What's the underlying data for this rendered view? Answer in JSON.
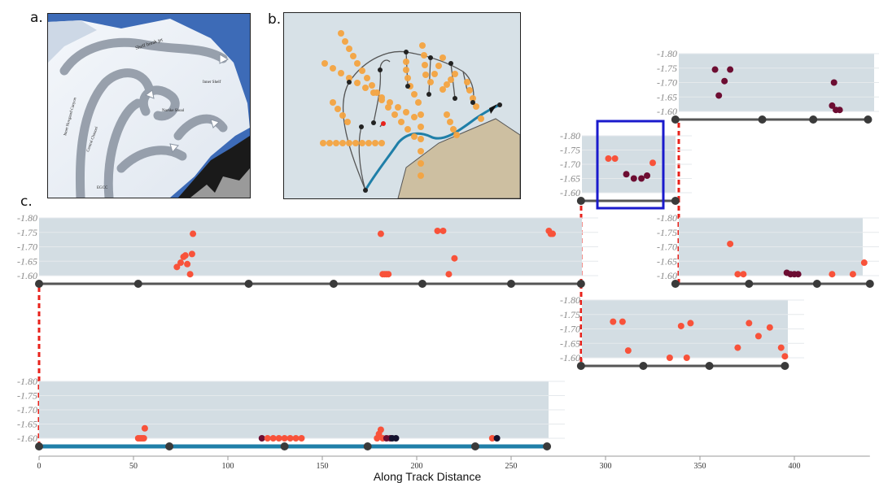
{
  "labels": {
    "a": "a.",
    "b": "b.",
    "c": "c."
  },
  "panel_a": {
    "map_labels": [
      "Shelf break jet",
      "Inner Hovgaard Canyon",
      "Central Channel",
      "Inner Shelf",
      "Norske Shoal",
      "EGCC"
    ]
  },
  "colors": {
    "panel_bg": "#d3dde3",
    "track": "#555555",
    "track_main": "#1f7fa8",
    "node": "#3a3a3a",
    "connector": "#e8221b",
    "highlight_box": "#1a1acc",
    "point_light": "#f8523a",
    "point_dark": "#6d0d32",
    "point_darkest": "#14122e",
    "tick_text": "#888888"
  },
  "chart_data": [
    {
      "type": "scatter",
      "id": "main-track",
      "xlabel": "Along Track Distance",
      "xticks": [
        0,
        50,
        100,
        150,
        200,
        250,
        300,
        350,
        400
      ],
      "xlim": [
        0,
        440
      ],
      "ylim": [
        -1.8,
        -1.6
      ],
      "yticks": [
        "-1.80",
        "-1.75",
        "-1.70",
        "-1.65",
        "-1.60"
      ],
      "track_nodes": [
        0,
        69,
        130,
        174,
        231,
        269
      ],
      "points": [
        {
          "x": 52.5,
          "y": -1.6,
          "c": "light"
        },
        {
          "x": 53.5,
          "y": -1.6,
          "c": "light"
        },
        {
          "x": 54.5,
          "y": -1.6,
          "c": "light"
        },
        {
          "x": 55.5,
          "y": -1.6,
          "c": "light"
        },
        {
          "x": 56,
          "y": -1.635,
          "c": "light"
        },
        {
          "x": 118,
          "y": -1.6,
          "c": "dark"
        },
        {
          "x": 121,
          "y": -1.6,
          "c": "light"
        },
        {
          "x": 124,
          "y": -1.6,
          "c": "light"
        },
        {
          "x": 127,
          "y": -1.6,
          "c": "light"
        },
        {
          "x": 130,
          "y": -1.6,
          "c": "light"
        },
        {
          "x": 133,
          "y": -1.6,
          "c": "light"
        },
        {
          "x": 136,
          "y": -1.6,
          "c": "light"
        },
        {
          "x": 139,
          "y": -1.6,
          "c": "light"
        },
        {
          "x": 179,
          "y": -1.6,
          "c": "light"
        },
        {
          "x": 180,
          "y": -1.615,
          "c": "light"
        },
        {
          "x": 181,
          "y": -1.63,
          "c": "light"
        },
        {
          "x": 182,
          "y": -1.6,
          "c": "light"
        },
        {
          "x": 184,
          "y": -1.6,
          "c": "dark"
        },
        {
          "x": 186,
          "y": -1.6,
          "c": "dark"
        },
        {
          "x": 187,
          "y": -1.6,
          "c": "darkest"
        },
        {
          "x": 189,
          "y": -1.6,
          "c": "darkest"
        },
        {
          "x": 240,
          "y": -1.6,
          "c": "light"
        },
        {
          "x": 242.5,
          "y": -1.6,
          "c": "darkest"
        }
      ]
    },
    {
      "type": "scatter",
      "id": "long-branch",
      "ylim": [
        -1.8,
        -1.6
      ],
      "yticks": [
        "-1.80",
        "-1.75",
        "-1.70",
        "-1.65",
        "-1.60"
      ],
      "track_nodes": [
        0,
        52.5,
        111,
        156,
        203,
        250,
        287
      ],
      "points": [
        {
          "x": 73,
          "y": -1.63,
          "c": "light"
        },
        {
          "x": 75,
          "y": -1.645,
          "c": "light"
        },
        {
          "x": 76.5,
          "y": -1.665,
          "c": "light"
        },
        {
          "x": 77.5,
          "y": -1.67,
          "c": "light"
        },
        {
          "x": 78.5,
          "y": -1.64,
          "c": "light"
        },
        {
          "x": 80,
          "y": -1.605,
          "c": "light"
        },
        {
          "x": 81,
          "y": -1.675,
          "c": "light"
        },
        {
          "x": 81.5,
          "y": -1.745,
          "c": "light"
        },
        {
          "x": 181,
          "y": -1.745,
          "c": "light"
        },
        {
          "x": 182,
          "y": -1.605,
          "c": "light"
        },
        {
          "x": 183,
          "y": -1.605,
          "c": "light"
        },
        {
          "x": 184,
          "y": -1.605,
          "c": "light"
        },
        {
          "x": 185,
          "y": -1.605,
          "c": "light"
        },
        {
          "x": 211,
          "y": -1.755,
          "c": "light"
        },
        {
          "x": 214,
          "y": -1.755,
          "c": "light"
        },
        {
          "x": 217,
          "y": -1.605,
          "c": "light"
        },
        {
          "x": 220,
          "y": -1.66,
          "c": "light"
        },
        {
          "x": 270,
          "y": -1.755,
          "c": "light"
        },
        {
          "x": 271,
          "y": -1.745,
          "c": "light"
        },
        {
          "x": 272,
          "y": -1.745,
          "c": "light"
        }
      ]
    },
    {
      "type": "scatter",
      "id": "lower-right",
      "ylim": [
        -1.8,
        -1.6
      ],
      "yticks": [
        "-1.80",
        "-1.75",
        "-1.70",
        "-1.65",
        "-1.60"
      ],
      "track_nodes": [
        287,
        320,
        355,
        395
      ],
      "points": [
        {
          "x": 304,
          "y": -1.725,
          "c": "light"
        },
        {
          "x": 309,
          "y": -1.725,
          "c": "light"
        },
        {
          "x": 312,
          "y": -1.625,
          "c": "light"
        },
        {
          "x": 334,
          "y": -1.6,
          "c": "light"
        },
        {
          "x": 340,
          "y": -1.71,
          "c": "light"
        },
        {
          "x": 343,
          "y": -1.6,
          "c": "light"
        },
        {
          "x": 345,
          "y": -1.72,
          "c": "light"
        },
        {
          "x": 370,
          "y": -1.635,
          "c": "light"
        },
        {
          "x": 376,
          "y": -1.72,
          "c": "light"
        },
        {
          "x": 381,
          "y": -1.675,
          "c": "light"
        },
        {
          "x": 387,
          "y": -1.705,
          "c": "light"
        },
        {
          "x": 393,
          "y": -1.635,
          "c": "light"
        },
        {
          "x": 395,
          "y": -1.605,
          "c": "light"
        }
      ]
    },
    {
      "type": "scatter",
      "id": "small-branch",
      "ylim": [
        -1.8,
        -1.6
      ],
      "yticks": [
        "-1.80",
        "-1.75",
        "-1.70",
        "-1.65",
        "-1.60"
      ],
      "track_nodes": [
        287,
        337
      ],
      "highlighted": true,
      "points": [
        {
          "x": 301.5,
          "y": -1.72,
          "c": "light"
        },
        {
          "x": 305,
          "y": -1.72,
          "c": "light"
        },
        {
          "x": 311,
          "y": -1.665,
          "c": "dark"
        },
        {
          "x": 315,
          "y": -1.65,
          "c": "dark"
        },
        {
          "x": 319,
          "y": -1.65,
          "c": "dark"
        },
        {
          "x": 322,
          "y": -1.66,
          "c": "dark"
        },
        {
          "x": 325,
          "y": -1.705,
          "c": "light"
        }
      ]
    },
    {
      "type": "scatter",
      "id": "upper-right",
      "ylim": [
        -1.8,
        -1.6
      ],
      "yticks": [
        "-1.80",
        "-1.75",
        "-1.70",
        "-1.65",
        "-1.60"
      ],
      "track_nodes": [
        337,
        383,
        410,
        439
      ],
      "points": [
        {
          "x": 358,
          "y": -1.745,
          "c": "dark"
        },
        {
          "x": 360,
          "y": -1.655,
          "c": "dark"
        },
        {
          "x": 363,
          "y": -1.705,
          "c": "dark"
        },
        {
          "x": 366,
          "y": -1.745,
          "c": "dark"
        },
        {
          "x": 420,
          "y": -1.62,
          "c": "dark"
        },
        {
          "x": 421,
          "y": -1.7,
          "c": "dark"
        },
        {
          "x": 422,
          "y": -1.605,
          "c": "dark"
        },
        {
          "x": 424,
          "y": -1.605,
          "c": "dark"
        }
      ]
    },
    {
      "type": "scatter",
      "id": "middle-right",
      "ylim": [
        -1.8,
        -1.6
      ],
      "yticks": [
        "-1.80",
        "-1.75",
        "-1.70",
        "-1.65",
        "-1.60"
      ],
      "track_nodes": [
        337,
        376,
        412,
        440
      ],
      "points": [
        {
          "x": 366,
          "y": -1.71,
          "c": "light"
        },
        {
          "x": 370,
          "y": -1.605,
          "c": "light"
        },
        {
          "x": 373,
          "y": -1.605,
          "c": "light"
        },
        {
          "x": 396,
          "y": -1.61,
          "c": "dark"
        },
        {
          "x": 398,
          "y": -1.605,
          "c": "dark"
        },
        {
          "x": 400,
          "y": -1.605,
          "c": "dark"
        },
        {
          "x": 402,
          "y": -1.605,
          "c": "dark"
        },
        {
          "x": 420,
          "y": -1.605,
          "c": "light"
        },
        {
          "x": 431,
          "y": -1.605,
          "c": "light"
        },
        {
          "x": 437,
          "y": -1.645,
          "c": "light"
        }
      ]
    }
  ]
}
